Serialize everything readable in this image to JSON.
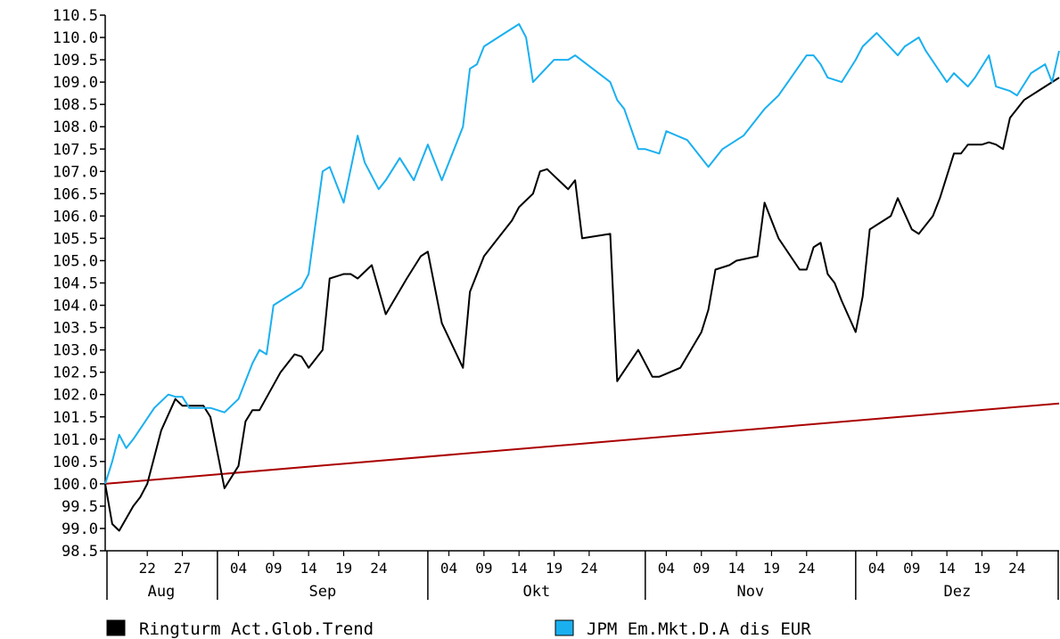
{
  "chart_data": {
    "type": "line",
    "title": "",
    "xlabel": "",
    "ylabel": "",
    "ylim": [
      98.5,
      110.5
    ],
    "y_ticks": [
      "110.5",
      "110.0",
      "109.5",
      "109.0",
      "108.5",
      "108.0",
      "107.5",
      "107.0",
      "106.5",
      "106.0",
      "105.5",
      "105.0",
      "104.5",
      "104.0",
      "103.5",
      "103.0",
      "102.5",
      "102.0",
      "101.5",
      "101.0",
      "100.5",
      "100.0",
      "99.5",
      "99.0",
      "98.5"
    ],
    "x_ticks": [
      "22",
      "27",
      "04",
      "09",
      "14",
      "19",
      "24",
      "04",
      "09",
      "14",
      "19",
      "24",
      "04",
      "09",
      "14",
      "19",
      "24",
      "04",
      "09",
      "14",
      "19",
      "24"
    ],
    "months": [
      "Aug",
      "Sep",
      "Okt",
      "Nov",
      "Dez"
    ],
    "grid": false,
    "legend_position": "bottom",
    "series": [
      {
        "name": "Ringturm Act.Glob.Trend",
        "color": "#000000",
        "x": [
          "2013-08-16",
          "2013-08-17",
          "2013-08-18",
          "2013-08-20",
          "2013-08-21",
          "2013-08-22",
          "2013-08-24",
          "2013-08-26",
          "2013-08-27",
          "2013-08-28",
          "2013-08-30",
          "2013-08-31",
          "2013-09-02",
          "2013-09-04",
          "2013-09-05",
          "2013-09-06",
          "2013-09-07",
          "2013-09-10",
          "2013-09-11",
          "2013-09-12",
          "2013-09-13",
          "2013-09-14",
          "2013-09-16",
          "2013-09-17",
          "2013-09-19",
          "2013-09-20",
          "2013-09-21",
          "2013-09-23",
          "2013-09-25",
          "2013-09-28",
          "2013-09-30",
          "2013-10-01",
          "2013-10-03",
          "2013-10-06",
          "2013-10-07",
          "2013-10-09",
          "2013-10-11",
          "2013-10-13",
          "2013-10-14",
          "2013-10-16",
          "2013-10-17",
          "2013-10-18",
          "2013-10-19",
          "2013-10-21",
          "2013-10-22",
          "2013-10-23",
          "2013-10-27",
          "2013-10-28",
          "2013-10-31",
          "2013-11-02",
          "2013-11-03",
          "2013-11-06",
          "2013-11-09",
          "2013-11-10",
          "2013-11-11",
          "2013-11-13",
          "2013-11-14",
          "2013-11-17",
          "2013-11-18",
          "2013-11-20",
          "2013-11-23",
          "2013-11-24",
          "2013-11-25",
          "2013-11-26",
          "2013-11-27",
          "2013-11-28",
          "2013-11-29",
          "2013-12-01",
          "2013-12-02",
          "2013-12-03",
          "2013-12-04",
          "2013-12-06",
          "2013-12-07",
          "2013-12-09",
          "2013-12-10",
          "2013-12-12",
          "2013-12-13",
          "2013-12-15",
          "2013-12-16",
          "2013-12-17",
          "2013-12-19",
          "2013-12-20",
          "2013-12-21",
          "2013-12-22",
          "2013-12-23",
          "2013-12-24",
          "2013-12-25",
          "2013-12-28",
          "2013-12-30"
        ],
        "y": [
          100.0,
          99.1,
          98.95,
          99.5,
          99.7,
          100.0,
          101.2,
          101.9,
          101.75,
          101.75,
          101.75,
          101.5,
          99.9,
          100.4,
          101.4,
          101.65,
          101.65,
          102.5,
          102.7,
          102.9,
          102.85,
          102.6,
          103.0,
          104.6,
          104.7,
          104.7,
          104.6,
          104.9,
          103.8,
          104.6,
          105.1,
          105.2,
          103.6,
          102.6,
          104.3,
          105.1,
          105.5,
          105.9,
          106.2,
          106.5,
          107.0,
          107.05,
          106.9,
          106.6,
          106.8,
          105.5,
          105.6,
          102.3,
          103.0,
          102.4,
          102.4,
          102.6,
          103.4,
          103.9,
          104.8,
          104.9,
          105.0,
          105.1,
          106.3,
          105.5,
          104.8,
          104.8,
          105.3,
          105.4,
          104.7,
          104.5,
          104.1,
          103.4,
          104.2,
          105.7,
          105.8,
          106.0,
          106.4,
          105.7,
          105.6,
          106.0,
          106.4,
          107.4,
          107.4,
          107.6,
          107.6,
          107.65,
          107.6,
          107.5,
          108.2,
          108.4,
          108.6,
          108.9,
          109.1
        ]
      },
      {
        "name": "JPM Em.Mkt.D.A dis EUR",
        "color": "#1ab0f0",
        "x": [
          "2013-08-16",
          "2013-08-17",
          "2013-08-18",
          "2013-08-19",
          "2013-08-20",
          "2013-08-23",
          "2013-08-25",
          "2013-08-26",
          "2013-08-27",
          "2013-08-28",
          "2013-08-31",
          "2013-09-02",
          "2013-09-04",
          "2013-09-06",
          "2013-09-07",
          "2013-09-08",
          "2013-09-09",
          "2013-09-12",
          "2013-09-13",
          "2013-09-14",
          "2013-09-16",
          "2013-09-17",
          "2013-09-19",
          "2013-09-21",
          "2013-09-22",
          "2013-09-24",
          "2013-09-25",
          "2013-09-27",
          "2013-09-29",
          "2013-09-30",
          "2013-10-01",
          "2013-10-03",
          "2013-10-04",
          "2013-10-06",
          "2013-10-07",
          "2013-10-08",
          "2013-10-09",
          "2013-10-11",
          "2013-10-13",
          "2013-10-14",
          "2013-10-15",
          "2013-10-16",
          "2013-10-19",
          "2013-10-20",
          "2013-10-21",
          "2013-10-22",
          "2013-10-27",
          "2013-10-28",
          "2013-10-29",
          "2013-10-31",
          "2013-11-01",
          "2013-11-03",
          "2013-11-04",
          "2013-11-07",
          "2013-11-10",
          "2013-11-11",
          "2013-11-12",
          "2013-11-15",
          "2013-11-18",
          "2013-11-20",
          "2013-11-24",
          "2013-11-25",
          "2013-11-26",
          "2013-11-27",
          "2013-11-29",
          "2013-12-01",
          "2013-12-02",
          "2013-12-04",
          "2013-12-07",
          "2013-12-08",
          "2013-12-10",
          "2013-12-11",
          "2013-12-14",
          "2013-12-15",
          "2013-12-17",
          "2013-12-18",
          "2013-12-20",
          "2013-12-21",
          "2013-12-23",
          "2013-12-24",
          "2013-12-26",
          "2013-12-28",
          "2013-12-29",
          "2013-12-30"
        ],
        "y": [
          100.0,
          100.5,
          101.1,
          100.8,
          101.0,
          101.7,
          102.0,
          101.95,
          101.95,
          101.7,
          101.7,
          101.6,
          101.9,
          102.7,
          103.0,
          102.9,
          104.0,
          104.3,
          104.4,
          104.7,
          107.0,
          107.1,
          106.3,
          107.8,
          107.2,
          106.6,
          106.8,
          107.3,
          106.8,
          107.2,
          107.6,
          106.8,
          107.2,
          108.0,
          109.3,
          109.4,
          109.8,
          110.0,
          110.2,
          110.3,
          110.0,
          109.0,
          109.5,
          109.5,
          109.5,
          109.6,
          109.0,
          108.6,
          108.4,
          107.5,
          107.5,
          107.4,
          107.9,
          107.7,
          107.1,
          107.3,
          107.5,
          107.8,
          108.4,
          108.7,
          109.6,
          109.6,
          109.4,
          109.1,
          109.0,
          109.5,
          109.8,
          110.1,
          109.6,
          109.8,
          110.0,
          109.7,
          109.0,
          109.2,
          108.9,
          109.1,
          109.6,
          108.9,
          108.8,
          108.7,
          109.2,
          109.4,
          109.0,
          109.7
        ]
      },
      {
        "name": "",
        "color": "#aa0000",
        "x": [
          "2013-08-16",
          "2013-12-30"
        ],
        "y": [
          100.0,
          101.8
        ]
      }
    ]
  }
}
